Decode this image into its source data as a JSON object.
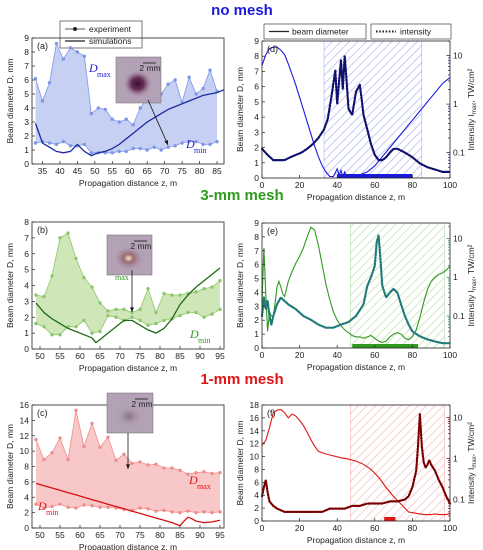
{
  "rows": [
    {
      "title": "no mesh",
      "color": "#1a1adc"
    },
    {
      "title": "3-mm mesh",
      "color": "#2e9a1e"
    },
    {
      "title": "1-mm mesh",
      "color": "#e01515"
    }
  ],
  "legend_left": {
    "experiment": "experiment",
    "simulations": "simulations"
  },
  "legend_right": {
    "beam": "beam diameter",
    "intensity": "intensity"
  },
  "chart_data": [
    {
      "id": "a",
      "letter": "(a)",
      "type": "line",
      "xlabel": "Propagation distance z, m",
      "ylabel": "Beam diameter D, mm",
      "xlim": [
        32,
        87
      ],
      "ylim": [
        0,
        9
      ],
      "xticks": [
        35,
        40,
        45,
        50,
        55,
        60,
        65,
        70,
        75,
        80,
        85
      ],
      "yticks": [
        0,
        1,
        2,
        3,
        4,
        5,
        6,
        7,
        8,
        9
      ],
      "fill": "#c6d0f3",
      "dot": "#7f96e6",
      "line": "#1a2a9e",
      "labelcolor": "#2222cc",
      "dmax_label": "D",
      "dmax_sub": "max",
      "dmin_label": "D",
      "dmin_sub": "min",
      "inset_scale": "2 mm",
      "exp_x": [
        33,
        35,
        37,
        39,
        41,
        43,
        45,
        47,
        49,
        51,
        53,
        55,
        57,
        59,
        61,
        63,
        65,
        67,
        69,
        71,
        73,
        75,
        77,
        79,
        81,
        83,
        85
      ],
      "exp_max": [
        6.1,
        4.5,
        5.8,
        8.6,
        7.5,
        8.3,
        8.0,
        7.7,
        3.6,
        4.0,
        3.9,
        3.2,
        3.0,
        3.2,
        2.8,
        4.0,
        4.7,
        4.8,
        5.0,
        5.7,
        6.0,
        4.4,
        6.2,
        5.0,
        5.4,
        6.7,
        5.2
      ],
      "exp_min": [
        1.5,
        1.6,
        1.5,
        1.4,
        1.6,
        1.3,
        1.3,
        1.4,
        0.8,
        0.8,
        0.8,
        0.8,
        0.9,
        0.9,
        1.1,
        1.1,
        1.0,
        1.2,
        1.0,
        1.2,
        1.3,
        1.5,
        1.6,
        1.6,
        1.4,
        1.4,
        1.6
      ],
      "sim_x": [
        33,
        35,
        37,
        39,
        41,
        43,
        45,
        47,
        49,
        51,
        53,
        55,
        57,
        59,
        61,
        63,
        65,
        67,
        69,
        71,
        73,
        75,
        77,
        79,
        81,
        83,
        85,
        87
      ],
      "sim_y": [
        2.9,
        1.5,
        1.2,
        0.9,
        0.8,
        0.9,
        1.4,
        0.9,
        0.6,
        0.8,
        0.9,
        1.1,
        1.4,
        1.8,
        2.2,
        2.6,
        3.0,
        3.3,
        3.6,
        3.9,
        4.1,
        4.3,
        4.5,
        4.7,
        4.9,
        5.0,
        5.1,
        5.3
      ]
    },
    {
      "id": "b",
      "letter": "(b)",
      "type": "line",
      "xlabel": "Propagation distance z, m",
      "ylabel": "Beam diameter D, mm",
      "xlim": [
        48,
        96
      ],
      "ylim": [
        0,
        8
      ],
      "xticks": [
        50,
        55,
        60,
        65,
        70,
        75,
        80,
        85,
        90,
        95
      ],
      "yticks": [
        0,
        1,
        2,
        3,
        4,
        5,
        6,
        7,
        8
      ],
      "fill": "#cfe6b9",
      "dot": "#8cc76a",
      "line": "#1e6a14",
      "labelcolor": "#2e9a1e",
      "dmax_label": "D",
      "dmax_sub": "max",
      "dmin_label": "D",
      "dmin_sub": "min",
      "inset_scale": "2 mm",
      "exp_x": [
        49,
        51,
        53,
        55,
        57,
        59,
        61,
        63,
        65,
        67,
        69,
        71,
        73,
        75,
        77,
        79,
        81,
        83,
        85,
        87,
        89,
        91,
        93,
        95
      ],
      "exp_max": [
        3.4,
        3.3,
        4.6,
        7.0,
        7.3,
        5.7,
        4.5,
        3.9,
        2.9,
        2.4,
        2.5,
        2.5,
        2.3,
        2.5,
        3.8,
        2.3,
        3.5,
        3.4,
        3.4,
        3.5,
        3.6,
        3.8,
        3.9,
        4.3
      ],
      "exp_min": [
        1.6,
        1.4,
        0.9,
        0.9,
        1.4,
        1.4,
        1.8,
        1.0,
        1.1,
        2.1,
        2.0,
        1.8,
        2.0,
        1.8,
        1.5,
        1.6,
        1.8,
        1.9,
        2.1,
        2.3,
        2.3,
        2.0,
        2.2,
        2.5
      ],
      "sim_x": [
        49,
        51,
        53,
        55,
        57,
        59,
        61,
        63,
        64,
        65,
        67,
        69,
        71,
        73,
        75,
        77,
        79,
        81,
        83,
        85,
        87,
        89,
        91,
        93,
        95
      ],
      "sim_y": [
        2.9,
        2.3,
        1.9,
        1.6,
        1.3,
        1.1,
        0.9,
        0.7,
        0.4,
        0.6,
        1.0,
        1.4,
        1.8,
        1.8,
        1.5,
        1.2,
        1.0,
        1.3,
        1.9,
        2.8,
        3.4,
        3.9,
        4.3,
        4.7,
        5.1
      ]
    },
    {
      "id": "c",
      "letter": "(c)",
      "type": "line",
      "xlabel": "Propagation distance z, m",
      "ylabel": "Beam diameter D, mm",
      "xlim": [
        48,
        96
      ],
      "ylim": [
        0,
        16
      ],
      "xticks": [
        50,
        55,
        60,
        65,
        70,
        75,
        80,
        85,
        90,
        95
      ],
      "yticks": [
        0,
        2,
        4,
        6,
        8,
        10,
        12,
        14,
        16
      ],
      "fill": "#f8c8c8",
      "dot": "#f08c8c",
      "line": "#d81010",
      "labelcolor": "#e01515",
      "dmax_label": "D",
      "dmax_sub": "max",
      "dmin_label": "D",
      "dmin_sub": "min",
      "inset_scale": "2 mm",
      "exp_x": [
        49,
        51,
        53,
        55,
        57,
        59,
        61,
        63,
        65,
        67,
        69,
        71,
        73,
        75,
        77,
        79,
        81,
        83,
        85,
        87,
        89,
        91,
        93,
        95
      ],
      "exp_max": [
        11.5,
        8.9,
        9.8,
        11.7,
        8.9,
        15.3,
        10.6,
        13.6,
        10.5,
        11.8,
        8.8,
        9.6,
        8.4,
        8.6,
        8.2,
        8.3,
        7.8,
        7.8,
        7.5,
        7.0,
        7.2,
        7.3,
        7.1,
        7.2
      ],
      "exp_min": [
        3.1,
        2.6,
        2.8,
        3.1,
        2.7,
        2.6,
        3.0,
        2.9,
        2.7,
        2.7,
        2.6,
        2.4,
        2.3,
        2.6,
        2.5,
        2.2,
        2.3,
        2.1,
        2.0,
        2.2,
        2.0,
        2.1,
        2.0,
        2.1
      ],
      "sim_x": [
        49,
        51,
        53,
        55,
        57,
        59,
        61,
        63,
        65,
        67,
        69,
        71,
        73,
        75,
        77,
        79,
        81,
        83,
        85,
        86,
        87,
        88,
        89,
        91,
        93,
        95
      ],
      "sim_y": [
        5.8,
        5.5,
        5.2,
        4.9,
        4.6,
        4.3,
        4.0,
        3.7,
        3.4,
        3.1,
        2.8,
        2.5,
        2.2,
        1.9,
        1.6,
        1.3,
        1.0,
        0.7,
        0.3,
        0.9,
        1.4,
        1.2,
        0.9,
        0.7,
        0.8,
        1.0
      ]
    },
    {
      "id": "d",
      "letter": "(d)",
      "type": "line",
      "xlabel": "Propagation distance z, m",
      "ylabel": "Beam diameter D, mm",
      "y2label": "Intensity I",
      "y2sub": "max",
      "y2unit": ", TW/cm²",
      "xlim": [
        0,
        100
      ],
      "ylim": [
        0,
        9
      ],
      "y2lim": [
        0.03,
        20
      ],
      "xticks": [
        0,
        20,
        40,
        60,
        80,
        100
      ],
      "yticks": [
        0,
        1,
        2,
        3,
        4,
        5,
        6,
        7,
        8,
        9
      ],
      "y2ticks": [
        0.1,
        1,
        10
      ],
      "y2ticklabels": [
        "0.1",
        "1",
        "10"
      ],
      "color": "#1a1adc",
      "dotcolor": "#101070",
      "hatch_range": [
        33,
        85
      ],
      "bar_range": [
        40,
        80
      ],
      "beam_x": [
        0,
        2,
        4,
        6,
        8,
        10,
        12,
        14,
        16,
        18,
        20,
        22,
        24,
        26,
        28,
        30,
        32,
        34,
        36,
        38,
        40,
        41,
        42,
        43,
        44,
        45,
        46,
        48,
        50,
        52,
        54,
        56,
        58,
        60,
        62,
        64,
        66,
        68,
        70,
        72,
        74,
        76,
        78,
        80,
        82,
        84,
        86,
        88,
        90,
        92,
        94,
        96,
        98,
        100
      ],
      "beam_y": [
        7.4,
        8.1,
        8.5,
        8.6,
        8.6,
        8.4,
        8.1,
        7.5,
        6.8,
        6.1,
        5.3,
        4.5,
        3.7,
        2.9,
        2.1,
        1.4,
        0.8,
        0.4,
        0.1,
        0.1,
        0.6,
        0.2,
        0.5,
        0.1,
        0.4,
        0.1,
        0.1,
        0.2,
        0.1,
        0.2,
        0.3,
        0.4,
        0.6,
        0.8,
        1.1,
        1.4,
        1.7,
        2.0,
        2.3,
        2.6,
        2.9,
        3.2,
        3.5,
        3.8,
        4.1,
        4.4,
        4.7,
        5.0,
        5.3,
        5.6,
        5.9,
        6.2,
        6.4,
        6.6
      ],
      "int_x": [
        0,
        3,
        6,
        9,
        12,
        15,
        18,
        21,
        24,
        27,
        30,
        33,
        35,
        37,
        39,
        40,
        41,
        42,
        43,
        44,
        45,
        46,
        48,
        50,
        52,
        53,
        54,
        56,
        58,
        60,
        62,
        64,
        66,
        68,
        70,
        72,
        74,
        76,
        78,
        80,
        84,
        88,
        92,
        96,
        100
      ],
      "int_y": [
        0.12,
        0.09,
        0.07,
        0.07,
        0.07,
        0.08,
        0.09,
        0.1,
        0.12,
        0.15,
        0.2,
        0.3,
        0.5,
        1.5,
        5,
        1,
        3,
        8,
        2,
        10,
        3,
        0.8,
        0.6,
        1.8,
        2.5,
        1.3,
        0.6,
        0.3,
        0.15,
        0.09,
        0.07,
        0.07,
        0.08,
        0.1,
        0.12,
        0.12,
        0.11,
        0.1,
        0.09,
        0.08,
        0.06,
        0.05,
        0.045,
        0.04,
        0.04
      ]
    },
    {
      "id": "e",
      "letter": "(e)",
      "type": "line",
      "xlabel": "Propagation distance z, m",
      "ylabel": "Beam diameter D, mm",
      "y2label": "Intensity I",
      "y2sub": "max",
      "y2unit": ", TW/cm²",
      "xlim": [
        0,
        100
      ],
      "ylim": [
        0,
        9
      ],
      "y2lim": [
        0.015,
        25
      ],
      "xticks": [
        0,
        20,
        40,
        60,
        80,
        100
      ],
      "yticks": [
        0,
        1,
        2,
        3,
        4,
        5,
        6,
        7,
        8,
        9
      ],
      "y2ticks": [
        0.1,
        1,
        10
      ],
      "y2ticklabels": [
        "0.1",
        "1",
        "10"
      ],
      "color": "#2e9a1e",
      "dotcolor": "#1f7a78",
      "hatch_range": [
        47,
        97
      ],
      "bar_range": [
        48,
        83
      ],
      "beam_x": [
        0,
        1,
        2,
        3,
        4,
        5,
        6,
        7,
        8,
        9,
        10,
        11,
        12,
        14,
        16,
        18,
        20,
        22,
        24,
        26,
        28,
        30,
        32,
        34,
        36,
        38,
        40,
        42,
        44,
        46,
        48,
        50,
        52,
        54,
        56,
        58,
        60,
        62,
        64,
        66,
        68,
        70,
        72,
        74,
        76,
        78,
        80,
        82,
        84,
        86,
        88,
        90,
        92,
        94,
        96,
        98,
        100
      ],
      "beam_y": [
        3.3,
        7.2,
        3.8,
        1.2,
        2.6,
        2.3,
        2.3,
        3.3,
        4.4,
        4.8,
        4.4,
        3.9,
        3.7,
        4.8,
        5.5,
        6.1,
        6.6,
        7.2,
        8.0,
        8.7,
        8.5,
        7.4,
        6.0,
        4.6,
        3.5,
        2.6,
        2.0,
        1.6,
        1.3,
        1.1,
        0.9,
        0.8,
        0.8,
        0.7,
        0.8,
        0.9,
        0.7,
        0.5,
        0.4,
        0.5,
        0.8,
        1.0,
        1.1,
        1.0,
        0.7,
        0.6,
        0.8,
        1.3,
        2.2,
        3.3,
        4.2,
        4.8,
        5.1,
        5.3,
        5.4,
        5.6,
        5.9
      ],
      "int_x": [
        0,
        1,
        2,
        3,
        4,
        5,
        6,
        8,
        10,
        14,
        18,
        22,
        26,
        30,
        34,
        38,
        42,
        46,
        50,
        54,
        56,
        58,
        60,
        61,
        62,
        63,
        64,
        66,
        68,
        70,
        72,
        74,
        76,
        78,
        80,
        84,
        88,
        92,
        96,
        100
      ],
      "int_y": [
        0.1,
        0.3,
        0.15,
        0.25,
        0.1,
        0.06,
        0.1,
        0.2,
        0.3,
        0.2,
        0.15,
        0.1,
        0.08,
        0.06,
        0.05,
        0.05,
        0.06,
        0.07,
        0.1,
        0.2,
        0.6,
        1,
        2,
        8,
        12,
        3,
        0.6,
        0.3,
        0.4,
        0.5,
        0.4,
        0.2,
        0.1,
        0.06,
        0.04,
        0.03,
        0.025,
        0.022,
        0.02,
        0.02
      ]
    },
    {
      "id": "f",
      "letter": "(f)",
      "type": "line",
      "xlabel": "Propagation distance z, m",
      "ylabel": "Beam diameter D, mm",
      "y2label": "Intensity I",
      "y2sub": "max",
      "y2unit": ", TW/cm²",
      "xlim": [
        0,
        100
      ],
      "ylim": [
        0,
        18
      ],
      "y2lim": [
        0.03,
        20
      ],
      "xticks": [
        0,
        20,
        40,
        60,
        80,
        100
      ],
      "yticks": [
        0,
        2,
        4,
        6,
        8,
        10,
        12,
        14,
        16,
        18
      ],
      "y2ticks": [
        0.1,
        1,
        10
      ],
      "y2ticklabels": [
        "0.1",
        "1",
        "10"
      ],
      "color": "#e01515",
      "dotcolor": "#7a0000",
      "hatch_range": [
        47,
        97
      ],
      "bar_range": [
        65,
        71
      ],
      "beam_x": [
        0,
        2,
        4,
        6,
        8,
        10,
        12,
        14,
        16,
        18,
        20,
        22,
        24,
        26,
        28,
        30,
        34,
        38,
        42,
        46,
        50,
        54,
        58,
        62,
        66,
        70,
        74,
        78,
        80,
        82,
        84,
        86,
        88,
        90,
        92,
        94,
        96,
        98,
        100
      ],
      "beam_y": [
        11.8,
        12.5,
        14.5,
        16.8,
        17.2,
        17.3,
        16.8,
        16.0,
        16.6,
        16.3,
        15.6,
        14.8,
        13.8,
        12.6,
        11.6,
        10.8,
        10.4,
        10.1,
        9.8,
        9.6,
        9.3,
        8.8,
        8.0,
        6.8,
        5.2,
        3.8,
        2.6,
        1.4,
        1.3,
        1.2,
        1.1,
        1.0,
        1.0,
        1.0,
        1.1,
        1.0,
        1.0,
        1.0,
        1.2
      ],
      "int_x": [
        0,
        1,
        2,
        3,
        4,
        6,
        8,
        12,
        16,
        20,
        24,
        28,
        32,
        36,
        40,
        44,
        48,
        52,
        56,
        60,
        64,
        68,
        72,
        76,
        78,
        80,
        82,
        83,
        84,
        85,
        86,
        87,
        88,
        89,
        90,
        92,
        94,
        96,
        98,
        100
      ],
      "int_y": [
        0.12,
        0.2,
        0.3,
        0.15,
        0.09,
        0.07,
        0.06,
        0.05,
        0.05,
        0.05,
        0.05,
        0.05,
        0.05,
        0.06,
        0.06,
        0.06,
        0.07,
        0.07,
        0.08,
        0.08,
        0.08,
        0.09,
        0.09,
        0.1,
        0.12,
        0.2,
        0.5,
        2,
        12,
        2,
        0.8,
        0.6,
        0.7,
        0.9,
        0.7,
        0.5,
        0.3,
        0.2,
        0.12,
        0.08
      ]
    }
  ]
}
